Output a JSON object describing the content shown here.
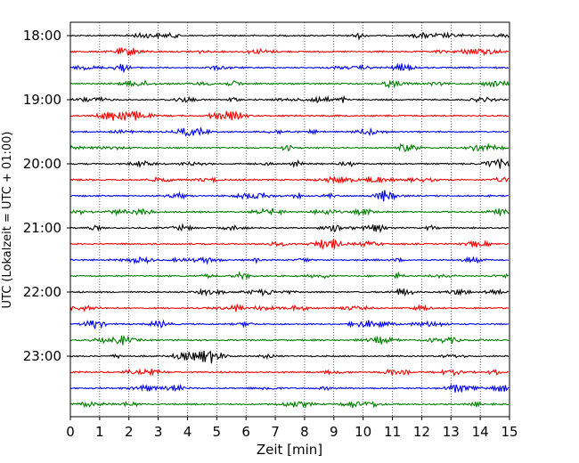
{
  "chart_data": {
    "type": "line",
    "subtype": "helicorder",
    "xlabel": "Zeit  [min]",
    "ylabel": "UTC (Lokalzeit = UTC + 01:00)",
    "xlim": [
      0,
      15
    ],
    "x_ticks": [
      "0",
      "1",
      "2",
      "3",
      "4",
      "5",
      "6",
      "7",
      "8",
      "9",
      "10",
      "11",
      "12",
      "13",
      "14",
      "15"
    ],
    "y_ticks": [
      "18:00",
      "19:00",
      "20:00",
      "21:00",
      "22:00",
      "23:00"
    ],
    "trace_interval_min": 15,
    "trace_count": 24,
    "trace_colors": [
      "#000000",
      "#ff0000",
      "#0000ff",
      "#007f00"
    ],
    "grid": "vertical dotted lines at each minute"
  }
}
